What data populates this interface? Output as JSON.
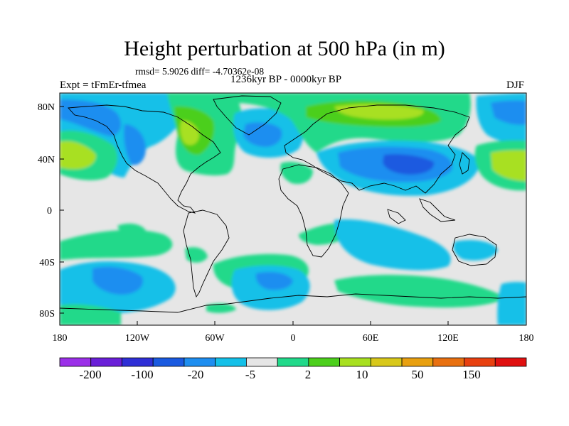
{
  "title": "Height perturbation at 500 hPa (in m)",
  "stats": "rmsd= 5.9026 diff= -4.70362e-08",
  "left_label": "Expt = tFmEr-tfmea",
  "center_label": "1236kyr BP - 0000kyr BP",
  "right_label": "DJF",
  "lat_labels": [
    "80N",
    "40N",
    "0",
    "40S",
    "80S"
  ],
  "lon_labels": [
    "180",
    "120W",
    "60W",
    "0",
    "60E",
    "120E",
    "180"
  ],
  "colorbar": {
    "labels": [
      "-200",
      "-100",
      "-20",
      "-5",
      "2",
      "10",
      "50",
      "150"
    ],
    "colors": [
      "#9b30e8",
      "#6a1fd8",
      "#2f2fd6",
      "#1a5ae0",
      "#1e8ef0",
      "#14c0e8",
      "#e6e6e6",
      "#21d98a",
      "#4ccf1c",
      "#a8e020",
      "#d8c81a",
      "#e8a010",
      "#e87010",
      "#e84010",
      "#e01010"
    ]
  },
  "fill_colors": {
    "ocean_bg": "#e6e6e6",
    "light_blue": "#14c0e8",
    "mid_blue": "#1e8ef0",
    "deep_blue": "#1a5ae0",
    "green": "#21d98a",
    "lime": "#4ccf1c",
    "yellow_green": "#a8e020",
    "gold": "#d8c81a"
  }
}
